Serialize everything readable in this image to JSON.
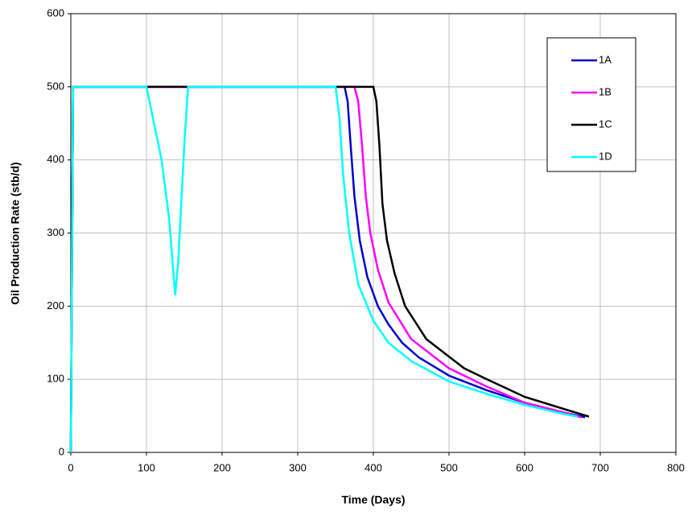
{
  "chart_data": {
    "type": "line",
    "xlabel": "Time (Days)",
    "ylabel": "Oil Production Rate (stb/d)",
    "xlim": [
      0,
      800
    ],
    "xticks": [
      0,
      100,
      200,
      300,
      400,
      500,
      600,
      700,
      800
    ],
    "ylim": [
      0,
      600
    ],
    "yticks": [
      0,
      100,
      200,
      300,
      400,
      500,
      600
    ],
    "grid": true,
    "legend": "upper right",
    "series": [
      {
        "name": "1A",
        "color": "#0000cc",
        "x": [
          0,
          3,
          362,
          366,
          370,
          375,
          382,
          392,
          406,
          420,
          438,
          460,
          500,
          550,
          600,
          650,
          680
        ],
        "values": [
          0,
          500,
          500,
          480,
          420,
          350,
          290,
          240,
          200,
          175,
          150,
          130,
          105,
          85,
          68,
          55,
          48
        ]
      },
      {
        "name": "1B",
        "color": "#ff00ff",
        "x": [
          0,
          3,
          375,
          380,
          385,
          390,
          396,
          406,
          420,
          450,
          500,
          550,
          600,
          650,
          675
        ],
        "values": [
          0,
          500,
          500,
          480,
          420,
          350,
          300,
          250,
          205,
          155,
          115,
          90,
          68,
          55,
          48
        ]
      },
      {
        "name": "1C",
        "color": "#000000",
        "x": [
          0,
          3,
          400,
          404,
          408,
          412,
          418,
          428,
          442,
          470,
          520,
          550,
          600,
          650,
          685
        ],
        "values": [
          0,
          500,
          500,
          480,
          420,
          340,
          290,
          245,
          200,
          155,
          115,
          100,
          76,
          60,
          49
        ]
      },
      {
        "name": "1D",
        "color": "#00ffff",
        "x": [
          0,
          3,
          100,
          110,
          120,
          130,
          138,
          142,
          150,
          155,
          350,
          355,
          360,
          368,
          380,
          400,
          420,
          450,
          500,
          550,
          600,
          650,
          670
        ],
        "values": [
          0,
          500,
          500,
          450,
          400,
          320,
          215,
          260,
          420,
          500,
          500,
          460,
          380,
          300,
          230,
          180,
          150,
          125,
          97,
          80,
          65,
          53,
          49
        ]
      }
    ]
  }
}
